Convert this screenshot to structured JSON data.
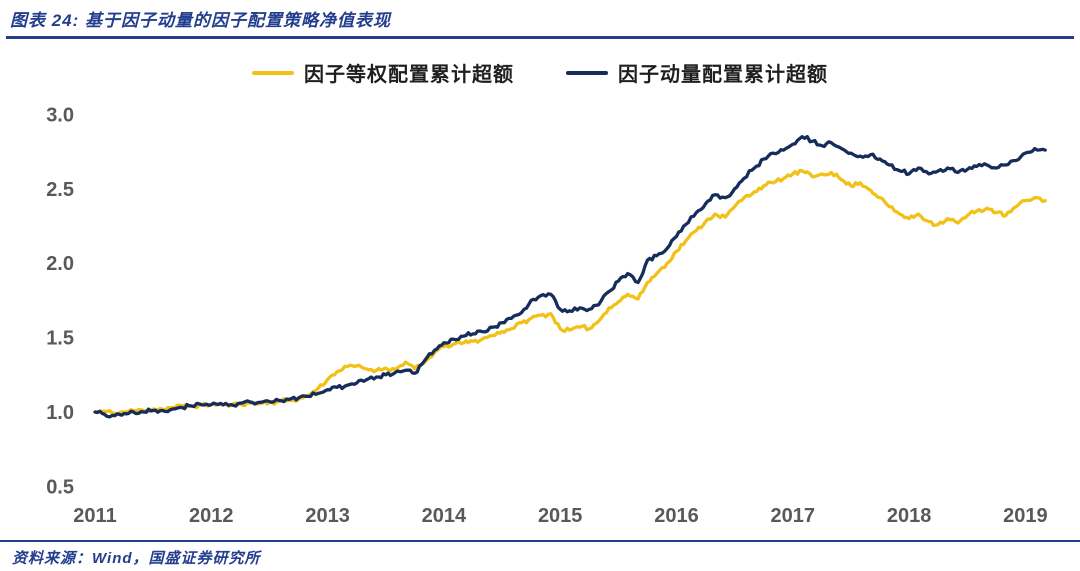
{
  "header": {
    "title": "图表 24: 基于因子动量的因子配置策略净值表现"
  },
  "footer": {
    "source": "资料来源：Wind，国盛证券研究所"
  },
  "colors": {
    "brand_blue": "#243e8f",
    "line_gold": "#f1c117",
    "line_navy": "#162d5c",
    "axis_text": "#595959",
    "legend_text": "#1f1f1f",
    "background": "#ffffff"
  },
  "legend": [
    {
      "label": "因子等权配置累计超额",
      "color": "#f1c117"
    },
    {
      "label": "因子动量配置累计超额",
      "color": "#162d5c"
    }
  ],
  "chart_data": {
    "type": "line",
    "title": "基于因子动量的因子配置策略净值表现",
    "xlabel": "",
    "ylabel": "",
    "grid": false,
    "legend_position": "top",
    "xlim": [
      2010.9,
      2019.25
    ],
    "ylim": [
      0.5,
      3.0
    ],
    "yticks": [
      0.5,
      1.0,
      1.5,
      2.0,
      2.5,
      3.0
    ],
    "xticks": [
      2011,
      2012,
      2013,
      2014,
      2015,
      2016,
      2017,
      2018,
      2019
    ],
    "x_unit": "decimal_year_monthly",
    "x": [
      2011.0,
      2011.08,
      2011.17,
      2011.25,
      2011.33,
      2011.42,
      2011.5,
      2011.58,
      2011.67,
      2011.75,
      2011.83,
      2011.92,
      2012.0,
      2012.08,
      2012.17,
      2012.25,
      2012.33,
      2012.42,
      2012.5,
      2012.58,
      2012.67,
      2012.75,
      2012.83,
      2012.92,
      2013.0,
      2013.08,
      2013.17,
      2013.25,
      2013.33,
      2013.42,
      2013.5,
      2013.58,
      2013.67,
      2013.75,
      2013.83,
      2013.92,
      2014.0,
      2014.08,
      2014.17,
      2014.25,
      2014.33,
      2014.42,
      2014.5,
      2014.58,
      2014.67,
      2014.75,
      2014.83,
      2014.92,
      2015.0,
      2015.08,
      2015.17,
      2015.25,
      2015.33,
      2015.42,
      2015.5,
      2015.58,
      2015.67,
      2015.75,
      2015.83,
      2015.92,
      2016.0,
      2016.08,
      2016.17,
      2016.25,
      2016.33,
      2016.42,
      2016.5,
      2016.58,
      2016.67,
      2016.75,
      2016.83,
      2016.92,
      2017.0,
      2017.08,
      2017.17,
      2017.25,
      2017.33,
      2017.42,
      2017.5,
      2017.58,
      2017.67,
      2017.75,
      2017.83,
      2017.92,
      2018.0,
      2018.08,
      2018.17,
      2018.25,
      2018.33,
      2018.42,
      2018.5,
      2018.58,
      2018.67,
      2018.75,
      2018.83,
      2018.92,
      2019.0,
      2019.08,
      2019.17
    ],
    "series": [
      {
        "name": "因子等权配置累计超额",
        "color": "#f1c117",
        "values": [
          1.0,
          1.005,
          0.99,
          1.0,
          1.01,
          1.01,
          1.02,
          1.02,
          1.03,
          1.04,
          1.04,
          1.048,
          1.05,
          1.05,
          1.045,
          1.055,
          1.06,
          1.058,
          1.065,
          1.07,
          1.078,
          1.085,
          1.11,
          1.16,
          1.22,
          1.27,
          1.305,
          1.31,
          1.29,
          1.28,
          1.295,
          1.285,
          1.335,
          1.29,
          1.33,
          1.4,
          1.44,
          1.455,
          1.465,
          1.475,
          1.49,
          1.515,
          1.54,
          1.56,
          1.6,
          1.63,
          1.65,
          1.66,
          1.56,
          1.55,
          1.57,
          1.56,
          1.61,
          1.7,
          1.74,
          1.79,
          1.76,
          1.87,
          1.93,
          2.0,
          2.08,
          2.15,
          2.22,
          2.28,
          2.33,
          2.31,
          2.38,
          2.44,
          2.48,
          2.52,
          2.54,
          2.57,
          2.6,
          2.62,
          2.58,
          2.6,
          2.61,
          2.56,
          2.52,
          2.54,
          2.49,
          2.44,
          2.38,
          2.33,
          2.3,
          2.33,
          2.28,
          2.26,
          2.3,
          2.27,
          2.32,
          2.35,
          2.37,
          2.34,
          2.32,
          2.38,
          2.42,
          2.44,
          2.42
        ]
      },
      {
        "name": "因子动量配置累计超额",
        "color": "#162d5c",
        "values": [
          1.0,
          0.985,
          0.975,
          0.99,
          1.0,
          1.0,
          1.01,
          1.01,
          1.02,
          1.03,
          1.04,
          1.048,
          1.05,
          1.058,
          1.05,
          1.06,
          1.068,
          1.065,
          1.07,
          1.078,
          1.085,
          1.095,
          1.105,
          1.125,
          1.15,
          1.165,
          1.18,
          1.195,
          1.215,
          1.235,
          1.25,
          1.265,
          1.28,
          1.26,
          1.34,
          1.415,
          1.465,
          1.49,
          1.51,
          1.525,
          1.54,
          1.57,
          1.6,
          1.63,
          1.67,
          1.75,
          1.78,
          1.79,
          1.69,
          1.68,
          1.7,
          1.69,
          1.72,
          1.81,
          1.88,
          1.93,
          1.87,
          2.02,
          2.05,
          2.1,
          2.18,
          2.26,
          2.34,
          2.4,
          2.46,
          2.44,
          2.5,
          2.57,
          2.64,
          2.7,
          2.74,
          2.76,
          2.8,
          2.85,
          2.82,
          2.79,
          2.81,
          2.77,
          2.74,
          2.72,
          2.73,
          2.7,
          2.66,
          2.62,
          2.6,
          2.64,
          2.6,
          2.62,
          2.64,
          2.61,
          2.63,
          2.65,
          2.66,
          2.64,
          2.66,
          2.69,
          2.74,
          2.77,
          2.76
        ]
      }
    ]
  }
}
